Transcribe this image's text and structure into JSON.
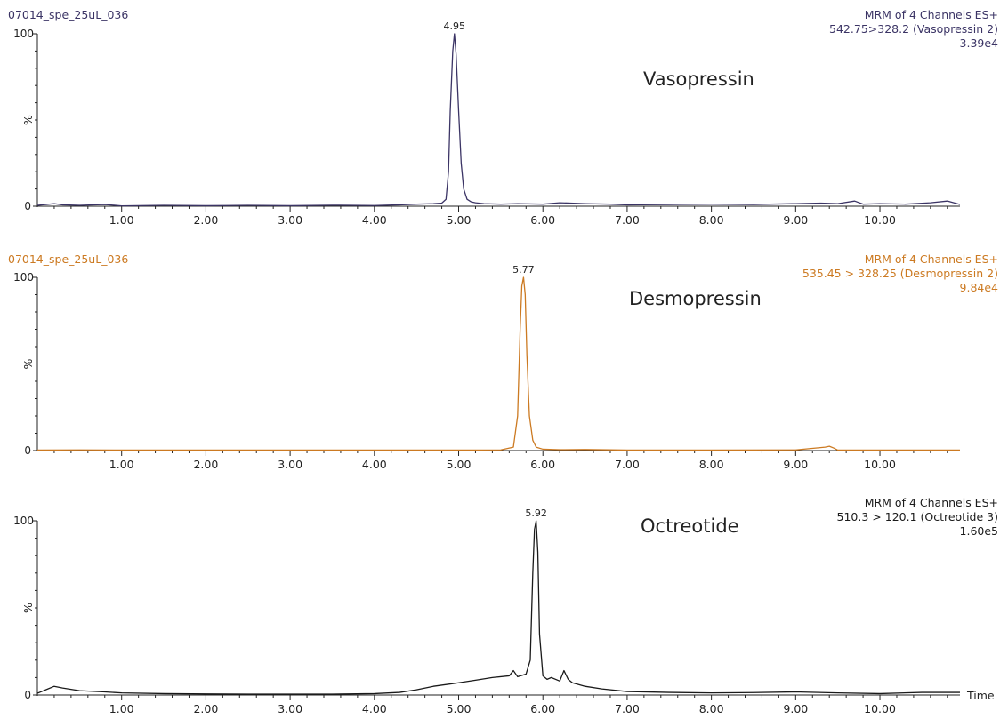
{
  "chart_data": [
    {
      "type": "line",
      "panel_id": "vasopressin",
      "sample_name": "07014_spe_25uL_036",
      "header_lines": [
        "MRM of 4 Channels ES+",
        "542.75>328.2 (Vasopressin 2)",
        "3.39e4"
      ],
      "compound_label": "Vasopressin",
      "peak_label": "4.95",
      "ylabel": "%",
      "xlabel": "",
      "xlim": [
        0,
        10.95
      ],
      "ylim": [
        0,
        100
      ],
      "x_ticks": [
        1.0,
        2.0,
        3.0,
        4.0,
        5.0,
        6.0,
        7.0,
        8.0,
        9.0,
        10.0
      ],
      "x_tick_labels": [
        "1.00",
        "2.00",
        "3.00",
        "4.00",
        "5.00",
        "6.00",
        "7.00",
        "8.00",
        "9.00",
        "10.00"
      ],
      "y_tick_labels": [
        "0",
        "100"
      ],
      "color": "#3b3465",
      "series": [
        {
          "x": [
            0.0,
            0.1,
            0.2,
            0.3,
            0.5,
            0.8,
            1.0,
            1.5,
            2.0,
            2.5,
            3.0,
            3.5,
            4.0,
            4.3,
            4.5,
            4.7,
            4.8,
            4.85,
            4.88,
            4.9,
            4.93,
            4.95,
            4.97,
            5.0,
            5.03,
            5.06,
            5.1,
            5.15,
            5.2,
            5.3,
            5.5,
            5.7,
            6.0,
            6.2,
            6.5,
            6.8,
            7.0,
            7.5,
            8.0,
            8.5,
            9.0,
            9.3,
            9.5,
            9.7,
            9.8,
            10.0,
            10.3,
            10.6,
            10.8,
            10.95
          ],
          "y": [
            0.5,
            1,
            1.5,
            0.8,
            0.5,
            1,
            0.2,
            0.5,
            0.3,
            0.5,
            0.3,
            0.6,
            0.4,
            0.8,
            1.2,
            1.5,
            1.8,
            4,
            20,
            55,
            90,
            100,
            88,
            55,
            25,
            10,
            4,
            2.5,
            2,
            1.5,
            1.2,
            1.5,
            1.2,
            2,
            1.5,
            1.2,
            0.8,
            1,
            1.2,
            1,
            1.5,
            1.8,
            1.5,
            3,
            1.2,
            1.5,
            1.2,
            2,
            3,
            1
          ]
        }
      ]
    },
    {
      "type": "line",
      "panel_id": "desmopressin",
      "sample_name": "07014_spe_25uL_036",
      "header_lines": [
        "MRM of 4 Channels ES+",
        "535.45 > 328.25 (Desmopressin 2)",
        "9.84e4"
      ],
      "compound_label": "Desmopressin",
      "peak_label": "5.77",
      "ylabel": "%",
      "xlabel": "",
      "xlim": [
        0,
        10.95
      ],
      "ylim": [
        0,
        100
      ],
      "x_ticks": [
        1.0,
        2.0,
        3.0,
        4.0,
        5.0,
        6.0,
        7.0,
        8.0,
        9.0,
        10.0
      ],
      "x_tick_labels": [
        "1.00",
        "2.00",
        "3.00",
        "4.00",
        "5.00",
        "6.00",
        "7.00",
        "8.00",
        "9.00",
        "10.00"
      ],
      "y_tick_labels": [
        "0",
        "100"
      ],
      "color": "#cc7a22",
      "series": [
        {
          "x": [
            0.0,
            0.5,
            1.0,
            2.0,
            3.0,
            4.0,
            5.0,
            5.5,
            5.65,
            5.7,
            5.73,
            5.75,
            5.77,
            5.79,
            5.81,
            5.84,
            5.88,
            5.92,
            6.0,
            6.2,
            6.5,
            7.0,
            8.0,
            9.0,
            9.35,
            9.4,
            9.45,
            9.5,
            10.0,
            10.95
          ],
          "y": [
            0.3,
            0.4,
            0.3,
            0.3,
            0.3,
            0.3,
            0.3,
            0.4,
            2,
            20,
            70,
            95,
            100,
            90,
            55,
            20,
            6,
            2,
            0.8,
            0.5,
            0.6,
            0.3,
            0.3,
            0.4,
            2,
            2.5,
            1.5,
            0.3,
            0.3,
            0.3
          ]
        }
      ]
    },
    {
      "type": "line",
      "panel_id": "octreotide",
      "header_lines": [
        "MRM of 4 Channels ES+",
        "510.3 > 120.1 (Octreotide 3)",
        "1.60e5"
      ],
      "compound_label": "Octreotide",
      "peak_label": "5.92",
      "ylabel": "%",
      "xlabel": "Time",
      "xlim": [
        0,
        10.95
      ],
      "ylim": [
        0,
        100
      ],
      "x_ticks": [
        1.0,
        2.0,
        3.0,
        4.0,
        5.0,
        6.0,
        7.0,
        8.0,
        9.0,
        10.0
      ],
      "x_tick_labels": [
        "1.00",
        "2.00",
        "3.00",
        "4.00",
        "5.00",
        "6.00",
        "7.00",
        "8.00",
        "9.00",
        "10.00"
      ],
      "y_tick_labels": [
        "0",
        "100"
      ],
      "color": "#1a1a1a",
      "series": [
        {
          "x": [
            0.0,
            0.1,
            0.2,
            0.3,
            0.5,
            0.8,
            1.0,
            1.5,
            2.0,
            2.5,
            3.0,
            3.5,
            4.0,
            4.3,
            4.5,
            4.7,
            5.0,
            5.2,
            5.4,
            5.6,
            5.65,
            5.7,
            5.8,
            5.85,
            5.88,
            5.9,
            5.92,
            5.94,
            5.96,
            6.0,
            6.05,
            6.1,
            6.2,
            6.25,
            6.3,
            6.35,
            6.5,
            6.7,
            7.0,
            7.5,
            8.0,
            8.5,
            9.0,
            9.5,
            10.0,
            10.5,
            10.95
          ],
          "y": [
            1,
            3,
            5,
            4,
            2.5,
            1.8,
            1.2,
            0.8,
            0.6,
            0.5,
            0.5,
            0.5,
            0.8,
            1.5,
            3,
            5,
            7,
            8.5,
            10,
            11,
            14,
            10.5,
            12,
            20,
            70,
            95,
            100,
            82,
            35,
            11,
            9,
            10,
            8,
            14,
            9,
            7,
            5,
            3.5,
            2,
            1.5,
            1.2,
            1.4,
            1.8,
            1.2,
            0.8,
            1.5,
            1.5
          ]
        }
      ]
    }
  ]
}
